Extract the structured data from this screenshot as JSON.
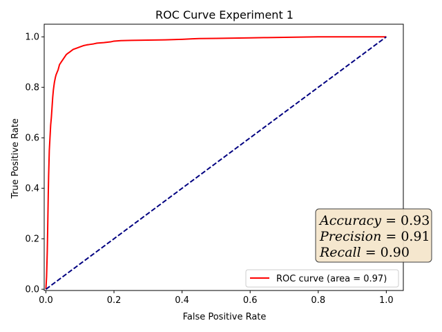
{
  "chart_data": {
    "type": "line",
    "title": "ROC Curve Experiment 1",
    "xlabel": "False Positive Rate",
    "ylabel": "True Positive Rate",
    "xlim": [
      -0.005,
      1.05
    ],
    "ylim": [
      -0.005,
      1.05
    ],
    "xticks": [
      0.0,
      0.2,
      0.4,
      0.6,
      0.8,
      1.0
    ],
    "yticks": [
      0.0,
      0.2,
      0.4,
      0.6,
      0.8,
      1.0
    ],
    "xtick_labels": [
      "0.0",
      "0.2",
      "0.4",
      "0.6",
      "0.8",
      "1.0"
    ],
    "ytick_labels": [
      "0.0",
      "0.2",
      "0.4",
      "0.6",
      "0.8",
      "1.0"
    ],
    "grid": false,
    "legend_position": "lower-right",
    "series": [
      {
        "name": "ROC curve (area = 0.97)",
        "color": "#ff0000",
        "style": "solid",
        "x": [
          0.0,
          0.002,
          0.004,
          0.005,
          0.006,
          0.007,
          0.008,
          0.009,
          0.01,
          0.012,
          0.014,
          0.016,
          0.018,
          0.02,
          0.022,
          0.025,
          0.028,
          0.03,
          0.033,
          0.036,
          0.04,
          0.045,
          0.05,
          0.055,
          0.06,
          0.065,
          0.07,
          0.08,
          0.09,
          0.1,
          0.11,
          0.12,
          0.13,
          0.14,
          0.15,
          0.17,
          0.19,
          0.2,
          0.22,
          0.25,
          0.3,
          0.35,
          0.4,
          0.43,
          0.45,
          0.5,
          0.55,
          0.6,
          0.65,
          0.7,
          0.75,
          0.8,
          0.85,
          0.9,
          0.95,
          1.0
        ],
        "y": [
          0.0,
          0.05,
          0.15,
          0.22,
          0.3,
          0.38,
          0.45,
          0.5,
          0.55,
          0.6,
          0.65,
          0.68,
          0.72,
          0.76,
          0.79,
          0.82,
          0.84,
          0.85,
          0.86,
          0.87,
          0.89,
          0.9,
          0.91,
          0.92,
          0.93,
          0.935,
          0.94,
          0.95,
          0.955,
          0.96,
          0.965,
          0.968,
          0.97,
          0.972,
          0.975,
          0.977,
          0.98,
          0.983,
          0.985,
          0.986,
          0.987,
          0.988,
          0.99,
          0.992,
          0.993,
          0.994,
          0.995,
          0.996,
          0.997,
          0.998,
          0.999,
          1.0,
          1.0,
          1.0,
          1.0,
          1.0
        ]
      },
      {
        "name": "",
        "color": "#000080",
        "style": "dashed",
        "x": [
          0.0,
          1.0
        ],
        "y": [
          0.0,
          1.0
        ]
      }
    ],
    "annotation": {
      "lines": [
        {
          "label": "Accuracy",
          "value": "0.93"
        },
        {
          "label": "Precision",
          "value": "0.91"
        },
        {
          "label": "Recall",
          "value": "0.90"
        }
      ],
      "background": "#f5e6cc",
      "position": "lower-right"
    }
  }
}
